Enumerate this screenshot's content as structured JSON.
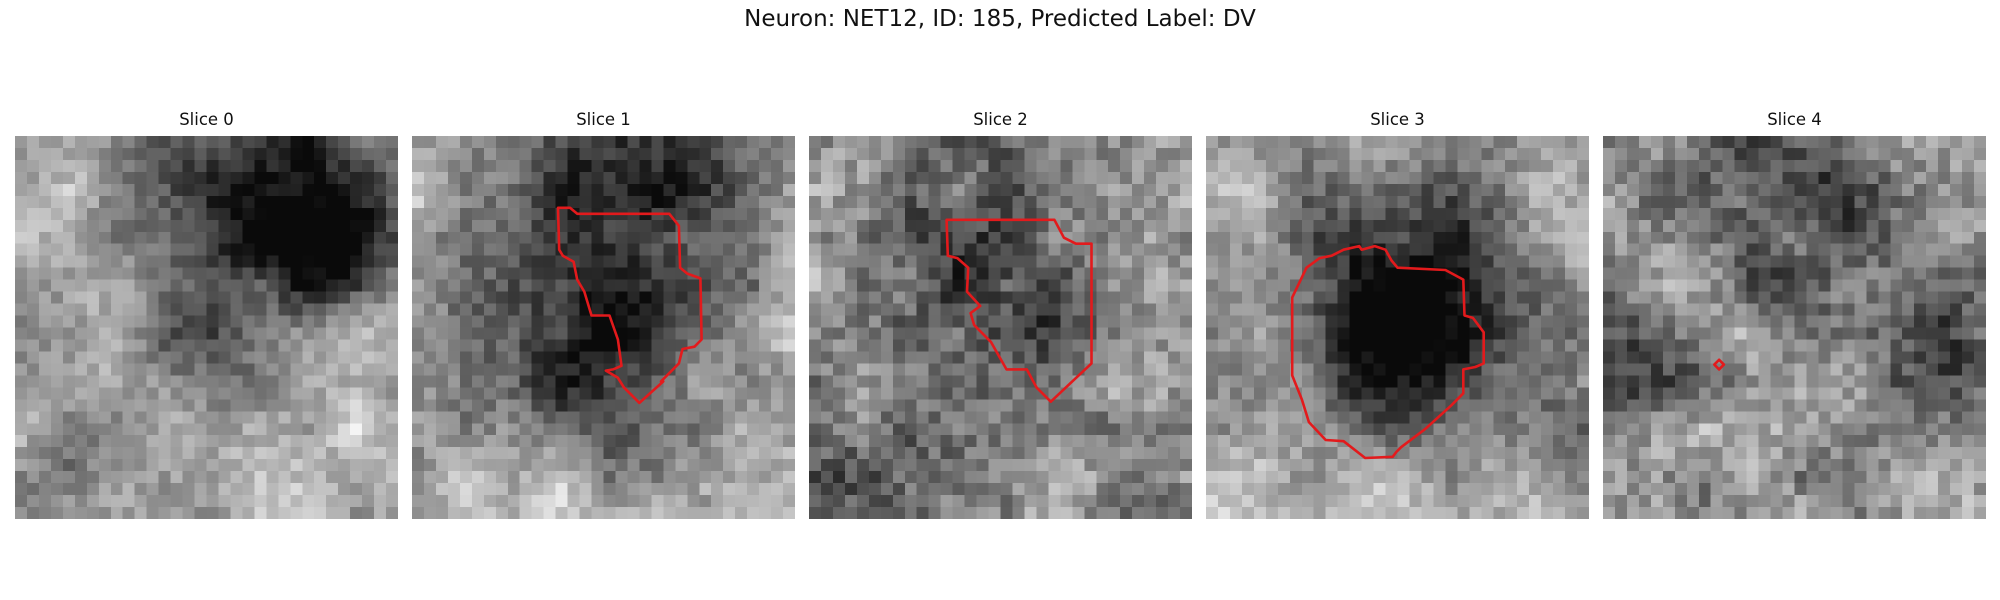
{
  "figure": {
    "title": "Neuron: NET12, ID: 185, Predicted Label: DV"
  },
  "panels": [
    {
      "title": "Slice 0",
      "has_contour": false
    },
    {
      "title": "Slice 1",
      "has_contour": true
    },
    {
      "title": "Slice 2",
      "has_contour": true
    },
    {
      "title": "Slice 3",
      "has_contour": true
    },
    {
      "title": "Slice 4",
      "has_contour": true
    }
  ],
  "colors": {
    "contour": "#e31a1c",
    "background": "#ffffff"
  }
}
